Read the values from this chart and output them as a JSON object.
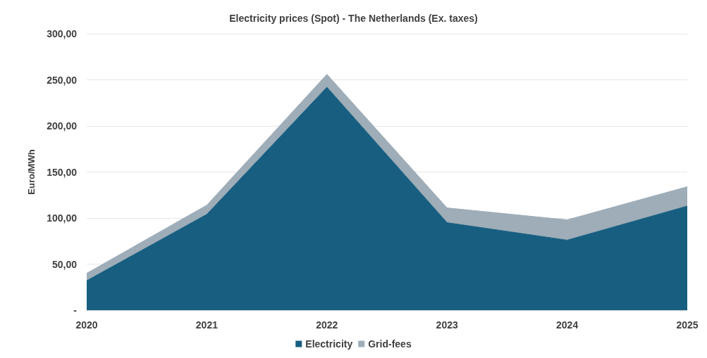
{
  "chart_data": {
    "type": "area",
    "title": "Electricity prices (Spot) - The Netherlands (Ex. taxes)",
    "ylabel": "Euro/MWh",
    "categories": [
      "2020",
      "2021",
      "2022",
      "2023",
      "2024",
      "2025"
    ],
    "stacked": true,
    "series": [
      {
        "name": "Electricity",
        "color": "#175e80",
        "values": [
          32,
          104,
          242,
          95,
          76,
          113
        ]
      },
      {
        "name": "Grid-fees",
        "color": "#9eadb8",
        "values": [
          8,
          10,
          14,
          16,
          22,
          21
        ]
      }
    ],
    "ylim": [
      0,
      300
    ],
    "yticks": [
      {
        "value": 0,
        "label": "-"
      },
      {
        "value": 50,
        "label": "50,00"
      },
      {
        "value": 100,
        "label": "100,00"
      },
      {
        "value": 150,
        "label": "150,00"
      },
      {
        "value": 200,
        "label": "200,00"
      },
      {
        "value": 250,
        "label": "250,00"
      },
      {
        "value": 300,
        "label": "300,00"
      }
    ],
    "grid": "y",
    "legend": "bottom",
    "marker": "none"
  }
}
